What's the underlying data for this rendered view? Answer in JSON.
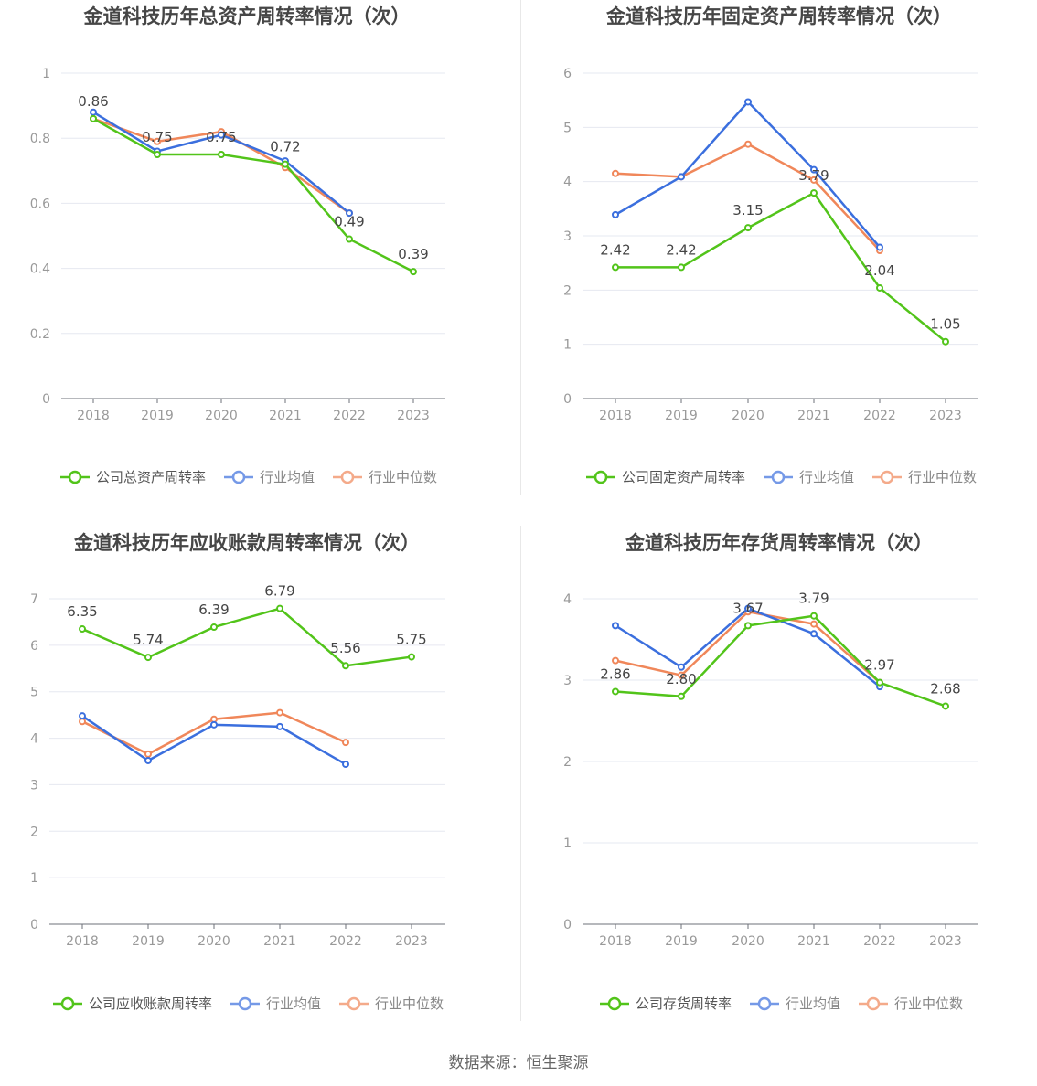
{
  "colors": {
    "company": "#52c41a",
    "avg": "#3b6fde",
    "median": "#f0875a",
    "grid": "#e6e8f0",
    "axis": "#6e7079",
    "label": "#999999",
    "title": "#464646",
    "value": "#444444"
  },
  "source": "数据来源：恒生聚源",
  "chart_data": [
    {
      "type": "line",
      "title": "金道科技历年总资产周转率情况（次）",
      "categories": [
        "2018",
        "2019",
        "2020",
        "2021",
        "2022",
        "2023"
      ],
      "ylim": [
        0,
        1
      ],
      "yticks": [
        "0",
        "0.2",
        "0.4",
        "0.6",
        "0.8",
        "1"
      ],
      "yticks_values": [
        0,
        0.2,
        0.4,
        0.6,
        0.8,
        1
      ],
      "series": [
        {
          "name": "公司总资产周转率",
          "key": "company",
          "values": [
            0.86,
            0.75,
            0.75,
            0.72,
            0.49,
            0.39
          ],
          "labels": [
            "0.86",
            "0.75",
            "0.75",
            "0.72",
            "0.49",
            "0.39"
          ]
        },
        {
          "name": "行业均值",
          "key": "avg",
          "values": [
            0.88,
            0.76,
            0.81,
            0.73,
            0.57,
            null
          ]
        },
        {
          "name": "行业中位数",
          "key": "median",
          "values": [
            0.86,
            0.79,
            0.82,
            0.71,
            0.57,
            null
          ]
        }
      ]
    },
    {
      "type": "line",
      "title": "金道科技历年固定资产周转率情况（次）",
      "categories": [
        "2018",
        "2019",
        "2020",
        "2021",
        "2022",
        "2023"
      ],
      "ylim": [
        0,
        6
      ],
      "yticks": [
        "0",
        "1",
        "2",
        "3",
        "4",
        "5",
        "6"
      ],
      "yticks_values": [
        0,
        1,
        2,
        3,
        4,
        5,
        6
      ],
      "series": [
        {
          "name": "公司固定资产周转率",
          "key": "company",
          "values": [
            2.42,
            2.42,
            3.15,
            3.79,
            2.04,
            1.05
          ],
          "labels": [
            "2.42",
            "2.42",
            "3.15",
            "3.79",
            "2.04",
            "1.05"
          ]
        },
        {
          "name": "行业均值",
          "key": "avg",
          "values": [
            3.39,
            4.09,
            5.47,
            4.22,
            2.79,
            null
          ]
        },
        {
          "name": "行业中位数",
          "key": "median",
          "values": [
            4.15,
            4.09,
            4.69,
            4.03,
            2.73,
            null
          ]
        }
      ]
    },
    {
      "type": "line",
      "title": "金道科技历年应收账款周转率情况（次）",
      "categories": [
        "2018",
        "2019",
        "2020",
        "2021",
        "2022",
        "2023"
      ],
      "ylim": [
        0,
        7
      ],
      "yticks": [
        "0",
        "1",
        "2",
        "3",
        "4",
        "5",
        "6",
        "7"
      ],
      "yticks_values": [
        0,
        1,
        2,
        3,
        4,
        5,
        6,
        7
      ],
      "series": [
        {
          "name": "公司应收账款周转率",
          "key": "company",
          "values": [
            6.35,
            5.74,
            6.39,
            6.79,
            5.56,
            5.75
          ],
          "labels": [
            "6.35",
            "5.74",
            "6.39",
            "6.79",
            "5.56",
            "5.75"
          ]
        },
        {
          "name": "行业均值",
          "key": "avg",
          "values": [
            4.48,
            3.52,
            4.29,
            4.25,
            3.44,
            null
          ]
        },
        {
          "name": "行业中位数",
          "key": "median",
          "values": [
            4.36,
            3.66,
            4.41,
            4.55,
            3.91,
            null
          ]
        }
      ]
    },
    {
      "type": "line",
      "title": "金道科技历年存货周转率情况（次）",
      "categories": [
        "2018",
        "2019",
        "2020",
        "2021",
        "2022",
        "2023"
      ],
      "ylim": [
        0,
        4
      ],
      "yticks": [
        "0",
        "1",
        "2",
        "3",
        "4"
      ],
      "yticks_values": [
        0,
        1,
        2,
        3,
        4
      ],
      "series": [
        {
          "name": "公司存货周转率",
          "key": "company",
          "values": [
            2.86,
            2.8,
            3.67,
            3.79,
            2.97,
            2.68
          ],
          "labels": [
            "2.86",
            "2.80",
            "3.67",
            "3.79",
            "2.97",
            "2.68"
          ]
        },
        {
          "name": "行业均值",
          "key": "avg",
          "values": [
            3.67,
            3.16,
            3.88,
            3.57,
            2.92,
            null
          ]
        },
        {
          "name": "行业中位数",
          "key": "median",
          "values": [
            3.24,
            3.06,
            3.84,
            3.69,
            2.97,
            null
          ]
        }
      ]
    }
  ]
}
